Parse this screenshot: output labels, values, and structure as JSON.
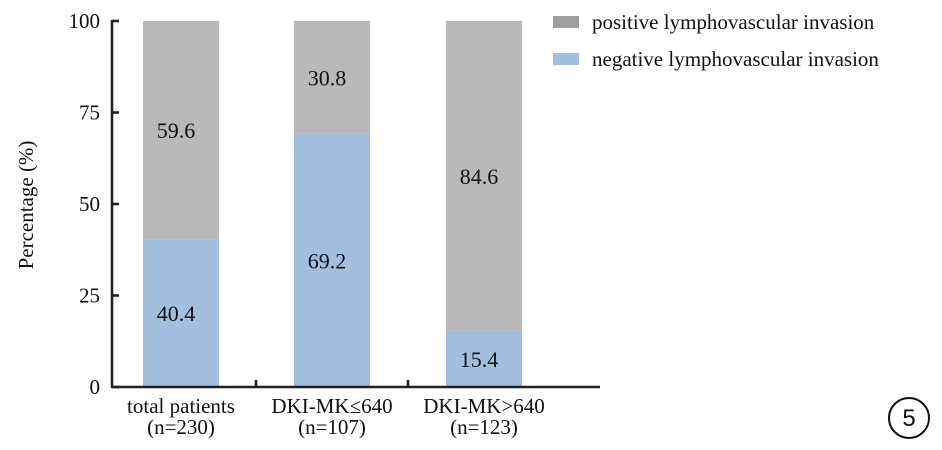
{
  "chart_data": {
    "type": "bar",
    "stacked": true,
    "categories": [
      [
        "total patients",
        "(n=230)"
      ],
      [
        "DKI-MK≤640",
        "(n=107)"
      ],
      [
        "DKI-MK>640",
        "(n=123)"
      ]
    ],
    "series": [
      {
        "name": "negative lymphovascular invasion",
        "color": "#a3bfdf",
        "values": [
          40.4,
          69.2,
          15.4
        ],
        "labels": [
          "40.4",
          "69.2",
          "15.4"
        ]
      },
      {
        "name": "positive lymphovascular invasion",
        "color": "#b9b9b9",
        "values": [
          59.6,
          30.8,
          84.6
        ],
        "labels": [
          "59.6",
          "30.8",
          "84.6"
        ]
      }
    ],
    "legend_order": [
      1,
      0
    ],
    "legend_colors": [
      "#9e9e9e",
      "#a3bfdf"
    ],
    "ylabel": "Percentage (%)",
    "xlabel": "",
    "ylim": [
      0,
      100
    ],
    "yticks": [
      "0",
      "25",
      "50",
      "75",
      "100"
    ],
    "grid": false,
    "legend_position": "top-right"
  },
  "figure_badge": "5"
}
